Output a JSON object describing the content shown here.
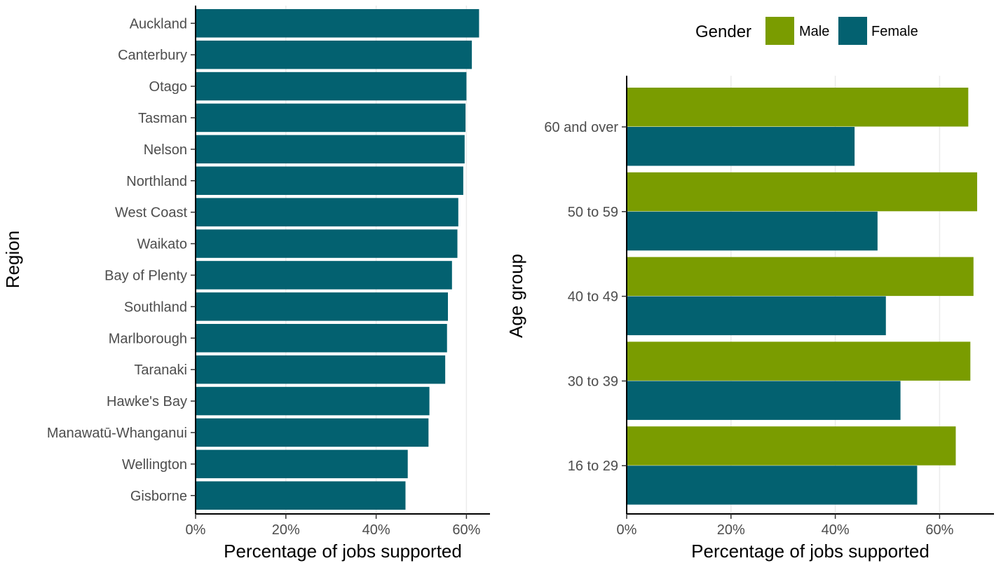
{
  "colors": {
    "teal": "#036170",
    "green": "#7a9c00"
  },
  "chart_data": [
    {
      "type": "bar",
      "orientation": "horizontal",
      "categories": [
        "Auckland",
        "Canterbury",
        "Otago",
        "Tasman",
        "Nelson",
        "Northland",
        "West Coast",
        "Waikato",
        "Bay of Plenty",
        "Southland",
        "Marlborough",
        "Taranaki",
        "Hawke's Bay",
        "Manawatū-Whanganui",
        "Wellington",
        "Gisborne"
      ],
      "values": [
        62.8,
        61.2,
        60.0,
        59.8,
        59.6,
        59.3,
        58.2,
        58.0,
        56.8,
        55.9,
        55.7,
        55.3,
        51.8,
        51.6,
        47.0,
        46.5
      ],
      "xlabel": "Percentage of jobs supported",
      "ylabel": "Region",
      "xlim": [
        0,
        65
      ],
      "xticks": [
        "0%",
        "20%",
        "40%",
        "60%"
      ],
      "grid": "vertical"
    },
    {
      "type": "bar",
      "orientation": "horizontal",
      "categories": [
        "60 and over",
        "50 to 59",
        "40 to 49",
        "30 to 39",
        "16 to 29"
      ],
      "series": [
        {
          "name": "Male",
          "values": [
            65.5,
            67.2,
            66.5,
            65.9,
            63.1
          ]
        },
        {
          "name": "Female",
          "values": [
            43.7,
            48.1,
            49.7,
            52.5,
            55.7
          ]
        }
      ],
      "xlabel": "Percentage of jobs supported",
      "ylabel": "Age group",
      "xlim": [
        0,
        70
      ],
      "xticks": [
        "0%",
        "20%",
        "40%",
        "60%"
      ],
      "legend_title": "Gender",
      "legend_position": "top",
      "grid": "vertical"
    }
  ]
}
